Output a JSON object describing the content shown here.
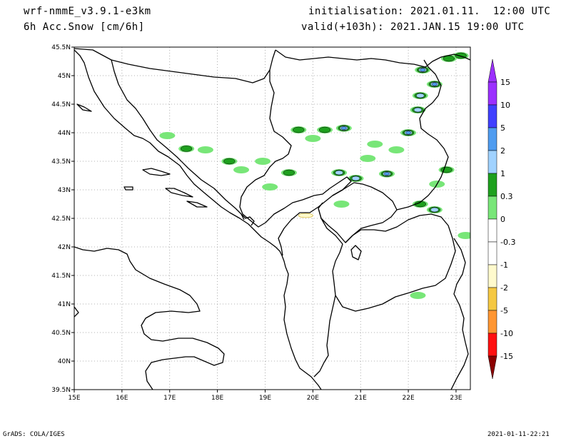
{
  "header": {
    "model": "wrf-nmmE_v3.9.1-e3km",
    "field": "6h Acc.Snow [cm/6h]",
    "init": "initialisation: 2021.01.11.  12:00 UTC",
    "valid": "valid(+103h): 2021.JAN.15 19:00 UTC"
  },
  "map": {
    "lon_labels": [
      "15E",
      "16E",
      "17E",
      "18E",
      "19E",
      "20E",
      "21E",
      "22E",
      "23E"
    ],
    "lat_labels": [
      "45.5N",
      "45N",
      "44.5N",
      "44N",
      "43.5N",
      "43N",
      "42.5N",
      "42N",
      "41.5N",
      "41N",
      "40.5N",
      "40N",
      "39.5N"
    ],
    "lon_range": [
      15,
      23.3
    ],
    "lat_range": [
      39.5,
      45.5
    ],
    "grid": "dotted",
    "land_color": "#ffffff",
    "border_color": "#000000",
    "snow_areas": [
      {
        "lon": 19.7,
        "lat": 44.05,
        "level": 1
      },
      {
        "lon": 20.25,
        "lat": 44.05,
        "level": 1
      },
      {
        "lon": 20.65,
        "lat": 44.08,
        "level": 5
      },
      {
        "lon": 20.0,
        "lat": 43.9,
        "level": 0.3
      },
      {
        "lon": 17.75,
        "lat": 43.7,
        "level": 0.3
      },
      {
        "lon": 18.25,
        "lat": 43.5,
        "level": 1
      },
      {
        "lon": 18.5,
        "lat": 43.35,
        "level": 0.3
      },
      {
        "lon": 17.35,
        "lat": 43.72,
        "level": 1
      },
      {
        "lon": 16.95,
        "lat": 43.95,
        "level": 0.3
      },
      {
        "lon": 20.55,
        "lat": 43.3,
        "level": 2
      },
      {
        "lon": 20.9,
        "lat": 43.2,
        "level": 2
      },
      {
        "lon": 21.55,
        "lat": 43.28,
        "level": 5
      },
      {
        "lon": 21.15,
        "lat": 43.55,
        "level": 0.3
      },
      {
        "lon": 22.0,
        "lat": 44.0,
        "level": 5
      },
      {
        "lon": 22.2,
        "lat": 44.4,
        "level": 2
      },
      {
        "lon": 22.25,
        "lat": 44.65,
        "level": 2
      },
      {
        "lon": 22.3,
        "lat": 45.1,
        "level": 5
      },
      {
        "lon": 22.55,
        "lat": 44.85,
        "level": 5
      },
      {
        "lon": 22.85,
        "lat": 45.3,
        "level": 1
      },
      {
        "lon": 23.1,
        "lat": 45.35,
        "level": 1
      },
      {
        "lon": 22.55,
        "lat": 42.65,
        "level": 2
      },
      {
        "lon": 22.25,
        "lat": 42.75,
        "level": 1
      },
      {
        "lon": 22.6,
        "lat": 43.1,
        "level": 0.3
      },
      {
        "lon": 22.8,
        "lat": 43.35,
        "level": 1
      },
      {
        "lon": 21.75,
        "lat": 43.7,
        "level": 0.3
      },
      {
        "lon": 20.6,
        "lat": 42.75,
        "level": 0.3
      },
      {
        "lon": 19.1,
        "lat": 43.05,
        "level": 0.3
      },
      {
        "lon": 21.3,
        "lat": 43.8,
        "level": 0.3
      },
      {
        "lon": 23.2,
        "lat": 42.2,
        "level": 0.3
      },
      {
        "lon": 22.2,
        "lat": 41.15,
        "level": 0.3
      },
      {
        "lon": 19.5,
        "lat": 43.3,
        "level": 1
      },
      {
        "lon": 18.95,
        "lat": 43.5,
        "level": 0.3
      }
    ],
    "neg_areas": [
      {
        "lon": 19.85,
        "lat": 42.55,
        "level": -1
      }
    ]
  },
  "legend": {
    "levels": [
      {
        "label": "15",
        "color": "#9b30ff"
      },
      {
        "label": "10",
        "color": "#4040ff"
      },
      {
        "label": "5",
        "color": "#4f9cf0"
      },
      {
        "label": "2",
        "color": "#a0d2ff"
      },
      {
        "label": "1",
        "color": "#1ea01e"
      },
      {
        "label": "0.3",
        "color": "#78e678"
      },
      {
        "label": "0",
        "color": "#ffffff"
      },
      {
        "label": "-0.3",
        "color": "#ffffff"
      },
      {
        "label": "-1",
        "color": "#fffacd"
      },
      {
        "label": "-2",
        "color": "#f5c842"
      },
      {
        "label": "-5",
        "color": "#ff9632"
      },
      {
        "label": "-10",
        "color": "#ff1010"
      },
      {
        "label": "-15",
        "color": "#c80000"
      }
    ],
    "top_color": "#9b30ff",
    "bottom_color": "#8c0000"
  },
  "footer": {
    "left": "GrADS: COLA/IGES",
    "right": "2021-01-11-22:21"
  }
}
